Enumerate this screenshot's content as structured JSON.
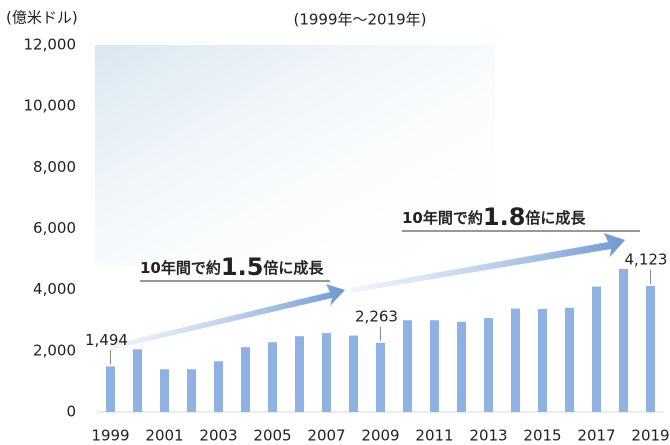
{
  "chart_data": {
    "type": "bar",
    "subtitle": "(1999年～2019年)",
    "y_axis_label": "(億米ドル)",
    "categories": [
      "1999",
      null,
      "2001",
      null,
      "2003",
      null,
      "2005",
      null,
      "2007",
      null,
      "2009",
      null,
      "2011",
      null,
      "2013",
      null,
      "2015",
      null,
      "2017",
      null,
      "2019"
    ],
    "values": [
      1494,
      2050,
      1400,
      1400,
      1660,
      2120,
      2280,
      2480,
      2580,
      2500,
      2263,
      3000,
      3000,
      2950,
      3070,
      3380,
      3370,
      3410,
      4100,
      4680,
      4123
    ],
    "value_labels": [
      "1,494",
      null,
      null,
      null,
      null,
      null,
      null,
      null,
      null,
      null,
      "2,263",
      null,
      null,
      null,
      null,
      null,
      null,
      null,
      null,
      null,
      "4,123"
    ],
    "color": "#8fb2e2",
    "ylim": [
      0,
      12000
    ],
    "yticks": [
      0,
      {
        "value": 2000,
        "label": "2,000"
      },
      {
        "value": 4000,
        "label": "4,000"
      },
      {
        "value": 6000,
        "label": "6,000"
      },
      {
        "value": 8000,
        "label": "8,000"
      },
      {
        "value": 10000,
        "label": "10,000"
      },
      {
        "value": 12000,
        "label": "12,000"
      }
    ],
    "annotations": [
      {
        "prefix": "10年間で約",
        "number": "1.5",
        "suffix": "倍に成長"
      },
      {
        "prefix": "10年間で約",
        "number": "1.8",
        "suffix": "倍に成長"
      }
    ]
  }
}
